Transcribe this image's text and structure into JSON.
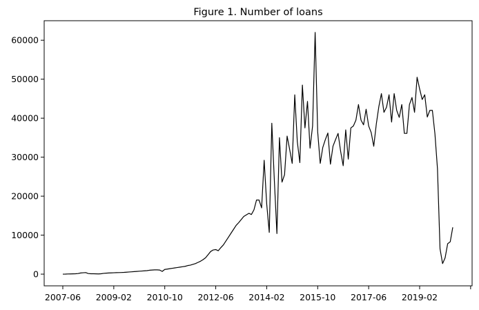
{
  "chart_data": {
    "type": "line",
    "title": "Figure 1. Number of loans",
    "xlabel": "",
    "ylabel": "",
    "grid": false,
    "legend": "none",
    "line_color": "#000000",
    "x_tick_labels": [
      "2007-06",
      "2009-02",
      "2010-10",
      "2012-06",
      "2014-02",
      "2015-10",
      "2017-06",
      "2019-02",
      ""
    ],
    "y_ticks": [
      0,
      10000,
      20000,
      30000,
      40000,
      50000,
      60000
    ],
    "y_tick_labels": [
      "0",
      "10000",
      "20000",
      "30000",
      "40000",
      "50000",
      "60000"
    ],
    "ylim": [
      -3000,
      65000
    ],
    "series": [
      {
        "values": [
          0,
          10,
          40,
          60,
          80,
          100,
          150,
          300,
          350,
          400,
          150,
          100,
          100,
          80,
          50,
          100,
          200,
          250,
          300,
          320,
          350,
          380,
          400,
          420,
          450,
          500,
          550,
          600,
          650,
          700,
          750,
          800,
          850,
          900,
          1000,
          1050,
          1100,
          1100,
          1050,
          700,
          1200,
          1300,
          1400,
          1500,
          1600,
          1700,
          1800,
          1900,
          2000,
          2200,
          2300,
          2500,
          2700,
          3000,
          3300,
          3700,
          4200,
          5000,
          5800,
          6200,
          6300,
          6000,
          6800,
          7500,
          8500,
          9500,
          10500,
          11500,
          12500,
          13200,
          14000,
          14800,
          15200,
          15600,
          15300,
          16500,
          19000,
          19000,
          17000,
          29200,
          18000,
          10700,
          38700,
          24000,
          10400,
          35000,
          23600,
          25500,
          35400,
          32000,
          28400,
          46000,
          34000,
          28600,
          48500,
          37500,
          44300,
          32300,
          38000,
          62000,
          36500,
          28400,
          32500,
          34500,
          36200,
          28200,
          32800,
          34500,
          36100,
          31500,
          27800,
          37000,
          29500,
          37500,
          38000,
          39500,
          43500,
          39500,
          38300,
          42300,
          38000,
          36300,
          32800,
          38500,
          43000,
          46300,
          41500,
          42800,
          46000,
          39000,
          46300,
          42000,
          40200,
          43500,
          36100,
          36100,
          43500,
          45300,
          41500,
          50500,
          47500,
          44800,
          46000,
          40300,
          42000,
          42000,
          36000,
          27000,
          6500,
          2700,
          4200,
          7800,
          8300,
          12000
        ]
      }
    ]
  }
}
